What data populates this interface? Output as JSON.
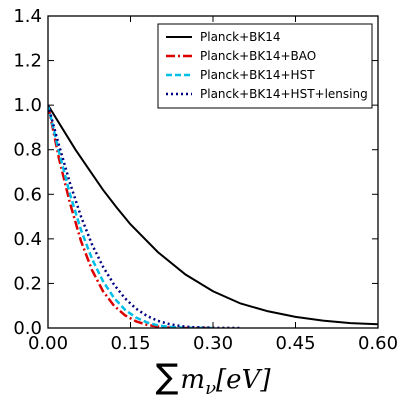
{
  "chart_data": {
    "type": "line",
    "xlabel": "∑m_ν[eV]",
    "xlabel_parts": {
      "sum": "∑",
      "m": "m",
      "sub": "ν",
      "unit": "[eV]"
    },
    "xlim": [
      0.0,
      0.6
    ],
    "ylim": [
      0.0,
      1.4
    ],
    "xticks": [
      "0.00",
      "0.15",
      "0.30",
      "0.45",
      "0.60"
    ],
    "xtick_values": [
      0.0,
      0.15,
      0.3,
      0.45,
      0.6
    ],
    "yticks": [
      "0.0",
      "0.2",
      "0.4",
      "0.6",
      "0.8",
      "1.0",
      "1.2",
      "1.4"
    ],
    "ytick_values": [
      0.0,
      0.2,
      0.4,
      0.6,
      0.8,
      1.0,
      1.2,
      1.4
    ],
    "grid": false,
    "legend_position": "top-right",
    "series": [
      {
        "name": "Planck+BK14",
        "color": "#000000",
        "dash": "solid",
        "x": [
          0.0,
          0.025,
          0.05,
          0.075,
          0.1,
          0.125,
          0.15,
          0.2,
          0.25,
          0.3,
          0.35,
          0.4,
          0.45,
          0.5,
          0.55,
          0.6
        ],
        "y": [
          1.0,
          0.9,
          0.8,
          0.71,
          0.62,
          0.54,
          0.465,
          0.34,
          0.24,
          0.165,
          0.11,
          0.075,
          0.05,
          0.033,
          0.022,
          0.017
        ]
      },
      {
        "name": "Planck+BK14+BAO",
        "color": "#dd0000",
        "dash": "dashdot",
        "x": [
          0.0,
          0.02,
          0.04,
          0.06,
          0.08,
          0.1,
          0.12,
          0.14,
          0.16,
          0.18,
          0.2,
          0.22,
          0.25,
          0.3
        ],
        "y": [
          1.0,
          0.76,
          0.56,
          0.39,
          0.26,
          0.165,
          0.1,
          0.057,
          0.03,
          0.014,
          0.006,
          0.002,
          0.0,
          0.0
        ]
      },
      {
        "name": "Planck+BK14+HST",
        "color": "#00bfe6",
        "dash": "dashed",
        "x": [
          0.0,
          0.02,
          0.04,
          0.06,
          0.08,
          0.1,
          0.12,
          0.14,
          0.16,
          0.18,
          0.2,
          0.22,
          0.25,
          0.3
        ],
        "y": [
          1.0,
          0.79,
          0.6,
          0.44,
          0.31,
          0.21,
          0.135,
          0.082,
          0.047,
          0.025,
          0.012,
          0.005,
          0.001,
          0.0
        ]
      },
      {
        "name": "Planck+BK14+HST+lensing",
        "color": "#000080",
        "dash": "dotted",
        "x": [
          0.0,
          0.02,
          0.04,
          0.06,
          0.08,
          0.1,
          0.12,
          0.14,
          0.16,
          0.18,
          0.2,
          0.22,
          0.24,
          0.26,
          0.3,
          0.35
        ],
        "y": [
          1.0,
          0.82,
          0.65,
          0.5,
          0.375,
          0.275,
          0.195,
          0.133,
          0.087,
          0.054,
          0.032,
          0.018,
          0.009,
          0.004,
          0.001,
          0.0
        ]
      }
    ]
  }
}
